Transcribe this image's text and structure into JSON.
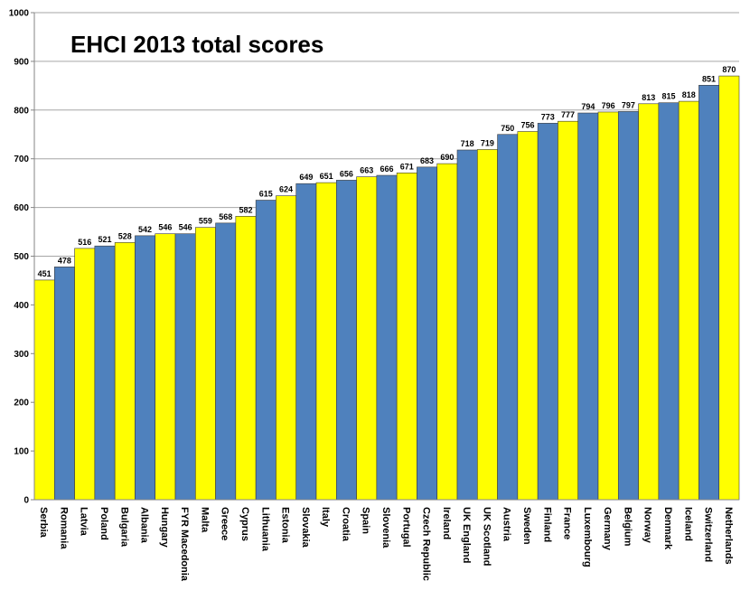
{
  "chart_data": {
    "type": "bar",
    "title": "EHCI 2013 total scores",
    "xlabel": "",
    "ylabel": "",
    "ylim": [
      0,
      1000
    ],
    "yticks": [
      0,
      100,
      200,
      300,
      400,
      500,
      600,
      700,
      800,
      900,
      1000
    ],
    "grid": true,
    "legend": "none",
    "colors": [
      "#FFFF00",
      "#4F81BD"
    ],
    "categories": [
      "Serbia",
      "Romania",
      "Latvia",
      "Poland",
      "Bulgaria",
      "Albania",
      "Hungary",
      "FYR Macedonia",
      "Malta",
      "Greece",
      "Cyprus",
      "Lithuania",
      "Estonia",
      "Slovakia",
      "Italy",
      "Croatia",
      "Spain",
      "Slovenia",
      "Portugal",
      "Czech Republic",
      "Ireland",
      "UK England",
      "UK Scotland",
      "Austria",
      "Sweden",
      "Finland",
      "France",
      "Luxembourg",
      "Germany",
      "Belgium",
      "Norway",
      "Denmark",
      "Iceland",
      "Switzerland",
      "Netherlands"
    ],
    "values": [
      451,
      478,
      516,
      521,
      528,
      542,
      546,
      546,
      559,
      568,
      582,
      615,
      624,
      649,
      651,
      656,
      663,
      666,
      671,
      683,
      690,
      718,
      719,
      750,
      756,
      773,
      777,
      794,
      796,
      797,
      813,
      815,
      818,
      851,
      870
    ],
    "value_labels": [
      "451",
      "478",
      "516",
      "521",
      "528",
      "542",
      "546",
      "546",
      "559",
      "568",
      "582",
      "615",
      "624",
      "649",
      "651",
      "656",
      "663",
      "666",
      "671",
      "683",
      "690",
      "718",
      "719",
      "750",
      "756",
      "773",
      "777",
      "794",
      "796",
      "797",
      "813",
      "815",
      "818",
      "851",
      "870"
    ]
  }
}
